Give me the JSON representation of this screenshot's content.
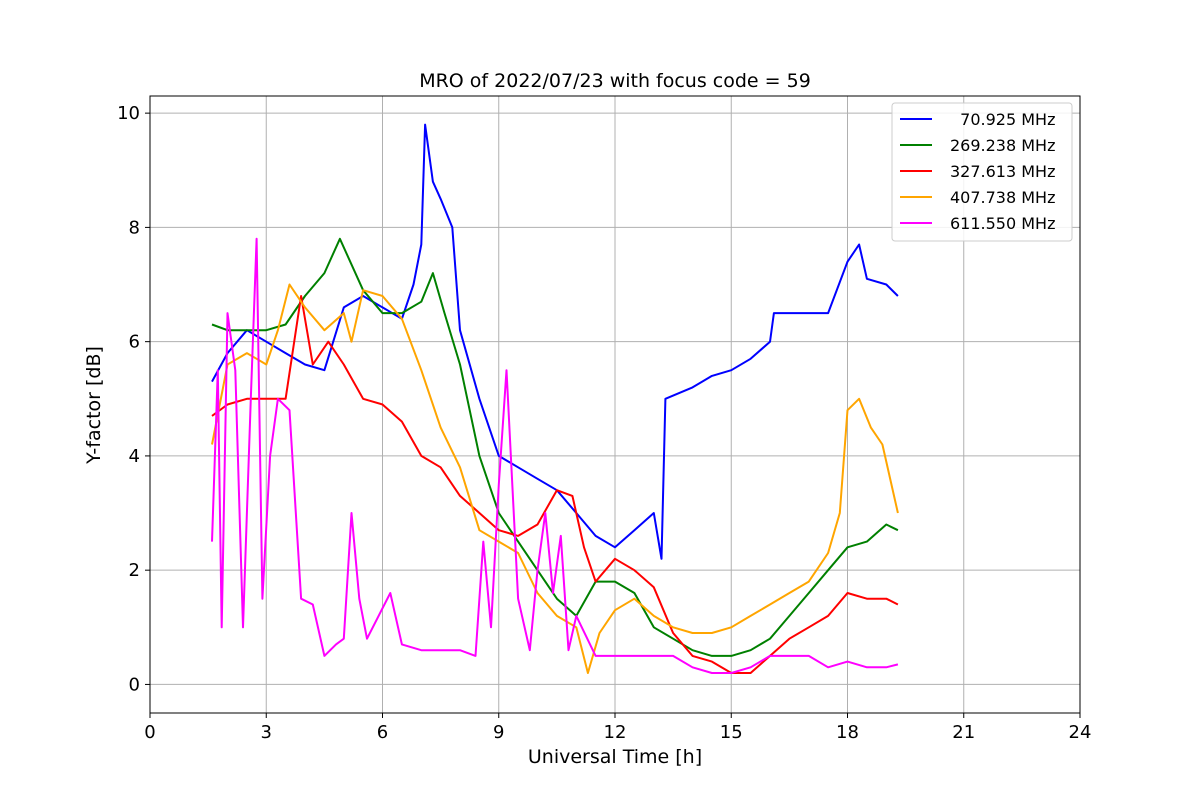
{
  "chart_data": {
    "type": "line",
    "title": "MRO of 2022/07/23 with focus code = 59",
    "xlabel": "Universal Time [h]",
    "ylabel": "Y-factor [dB]",
    "xlim": [
      0,
      24
    ],
    "ylim": [
      -0.5,
      10.3
    ],
    "xticks": [
      0,
      3,
      6,
      9,
      12,
      15,
      18,
      21,
      24
    ],
    "yticks": [
      0,
      2,
      4,
      6,
      8,
      10
    ],
    "grid": true,
    "legend_position": "top-right",
    "series": [
      {
        "name": "70.925 MHz",
        "label": "  70.925 MHz",
        "color": "#0000ff",
        "x": [
          1.6,
          2.0,
          2.5,
          3.0,
          3.5,
          4.0,
          4.5,
          5.0,
          5.5,
          6.0,
          6.5,
          6.8,
          7.0,
          7.1,
          7.3,
          7.5,
          7.8,
          8.0,
          8.5,
          9.0,
          9.5,
          10.0,
          10.5,
          11.0,
          11.5,
          12.0,
          12.5,
          13.0,
          13.2,
          13.3,
          14.0,
          14.5,
          15.0,
          15.5,
          16.0,
          16.1,
          16.5,
          17.0,
          17.5,
          18.0,
          18.3,
          18.5,
          19.0,
          19.3
        ],
        "values": [
          5.3,
          5.8,
          6.2,
          6.0,
          5.8,
          5.6,
          5.5,
          6.6,
          6.8,
          6.6,
          6.4,
          7.0,
          7.7,
          9.8,
          8.8,
          8.5,
          8.0,
          6.2,
          5.0,
          4.0,
          3.8,
          3.6,
          3.4,
          3.0,
          2.6,
          2.4,
          2.7,
          3.0,
          2.2,
          5.0,
          5.2,
          5.4,
          5.5,
          5.7,
          6.0,
          6.5,
          6.5,
          6.5,
          6.5,
          7.4,
          7.7,
          7.1,
          7.0,
          6.8
        ]
      },
      {
        "name": "269.238 MHz",
        "label": "269.238 MHz",
        "color": "#008000",
        "x": [
          1.6,
          2.0,
          2.5,
          3.0,
          3.5,
          4.0,
          4.5,
          4.9,
          5.5,
          6.0,
          6.5,
          7.0,
          7.3,
          7.6,
          8.0,
          8.5,
          9.0,
          9.5,
          10.0,
          10.5,
          11.0,
          11.5,
          12.0,
          12.5,
          13.0,
          13.5,
          14.0,
          14.5,
          15.0,
          15.5,
          16.0,
          16.5,
          17.0,
          17.5,
          18.0,
          18.5,
          19.0,
          19.3
        ],
        "values": [
          6.3,
          6.2,
          6.2,
          6.2,
          6.3,
          6.8,
          7.2,
          7.8,
          6.9,
          6.5,
          6.5,
          6.7,
          7.2,
          6.5,
          5.6,
          4.0,
          3.0,
          2.5,
          2.0,
          1.5,
          1.2,
          1.8,
          1.8,
          1.6,
          1.0,
          0.8,
          0.6,
          0.5,
          0.5,
          0.6,
          0.8,
          1.2,
          1.6,
          2.0,
          2.4,
          2.5,
          2.8,
          2.7
        ]
      },
      {
        "name": "327.613 MHz",
        "label": "327.613 MHz",
        "color": "#ff0000",
        "x": [
          1.6,
          2.0,
          2.5,
          3.0,
          3.5,
          3.9,
          4.2,
          4.6,
          5.0,
          5.5,
          6.0,
          6.5,
          7.0,
          7.5,
          8.0,
          8.5,
          9.0,
          9.5,
          10.0,
          10.5,
          10.9,
          11.2,
          11.5,
          12.0,
          12.5,
          13.0,
          13.5,
          14.0,
          14.5,
          15.0,
          15.5,
          16.0,
          16.5,
          17.0,
          17.5,
          18.0,
          18.5,
          19.0,
          19.3
        ],
        "values": [
          4.7,
          4.9,
          5.0,
          5.0,
          5.0,
          6.8,
          5.6,
          6.0,
          5.6,
          5.0,
          4.9,
          4.6,
          4.0,
          3.8,
          3.3,
          3.0,
          2.7,
          2.6,
          2.8,
          3.4,
          3.3,
          2.4,
          1.8,
          2.2,
          2.0,
          1.7,
          0.9,
          0.5,
          0.4,
          0.2,
          0.2,
          0.5,
          0.8,
          1.0,
          1.2,
          1.6,
          1.5,
          1.5,
          1.4
        ]
      },
      {
        "name": "407.738 MHz",
        "label": "407.738 MHz",
        "color": "#ffa500",
        "x": [
          1.6,
          2.0,
          2.5,
          3.0,
          3.3,
          3.6,
          4.0,
          4.5,
          5.0,
          5.2,
          5.5,
          6.0,
          6.5,
          7.0,
          7.5,
          8.0,
          8.5,
          9.0,
          9.5,
          10.0,
          10.5,
          11.0,
          11.3,
          11.6,
          12.0,
          12.5,
          13.0,
          13.5,
          14.0,
          14.5,
          15.0,
          15.5,
          16.0,
          16.5,
          17.0,
          17.5,
          17.8,
          18.0,
          18.3,
          18.6,
          18.9,
          19.3
        ],
        "values": [
          4.2,
          5.6,
          5.8,
          5.6,
          6.2,
          7.0,
          6.6,
          6.2,
          6.5,
          6.0,
          6.9,
          6.8,
          6.4,
          5.5,
          4.5,
          3.8,
          2.7,
          2.5,
          2.3,
          1.6,
          1.2,
          1.0,
          0.2,
          0.9,
          1.3,
          1.5,
          1.2,
          1.0,
          0.9,
          0.9,
          1.0,
          1.2,
          1.4,
          1.6,
          1.8,
          2.3,
          3.0,
          4.8,
          5.0,
          4.5,
          4.2,
          3.0
        ]
      },
      {
        "name": "611.550 MHz",
        "label": "611.550 MHz",
        "color": "#ff00ff",
        "x": [
          1.6,
          1.75,
          1.85,
          2.0,
          2.2,
          2.4,
          2.6,
          2.75,
          2.9,
          3.1,
          3.3,
          3.6,
          3.9,
          4.2,
          4.5,
          4.8,
          5.0,
          5.2,
          5.4,
          5.6,
          5.9,
          6.2,
          6.5,
          7.0,
          7.5,
          8.0,
          8.4,
          8.6,
          8.8,
          9.0,
          9.2,
          9.5,
          9.8,
          10.0,
          10.2,
          10.4,
          10.6,
          10.8,
          11.0,
          11.5,
          12.0,
          12.5,
          13.0,
          13.5,
          14.0,
          14.5,
          15.0,
          15.5,
          16.0,
          16.5,
          17.0,
          17.5,
          18.0,
          18.5,
          19.0,
          19.3
        ],
        "values": [
          2.5,
          5.5,
          1.0,
          6.5,
          5.5,
          1.0,
          5.0,
          7.8,
          1.5,
          4.0,
          5.0,
          4.8,
          1.5,
          1.4,
          0.5,
          0.7,
          0.8,
          3.0,
          1.5,
          0.8,
          1.2,
          1.6,
          0.7,
          0.6,
          0.6,
          0.6,
          0.5,
          2.5,
          1.0,
          3.5,
          5.5,
          1.5,
          0.6,
          2.0,
          3.0,
          1.6,
          2.6,
          0.6,
          1.2,
          0.5,
          0.5,
          0.5,
          0.5,
          0.5,
          0.3,
          0.2,
          0.2,
          0.3,
          0.5,
          0.5,
          0.5,
          0.3,
          0.4,
          0.3,
          0.3,
          0.35
        ]
      }
    ]
  }
}
